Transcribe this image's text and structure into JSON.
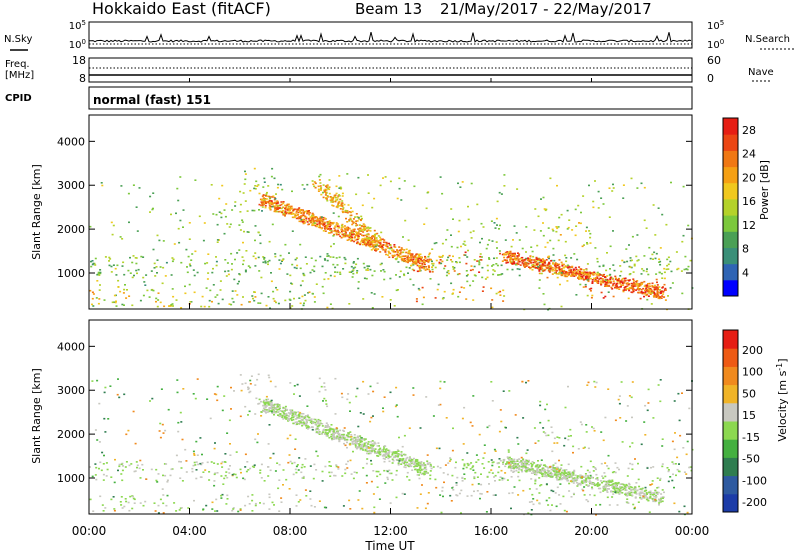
{
  "header": {
    "station": "Hokkaido East (fitACF)",
    "beam": "Beam 13",
    "date_range": "21/May/2017 - 22/May/2017"
  },
  "noise_panel": {
    "left_label": "N.Sky",
    "right_label": "N.Search",
    "left_ticks": [
      "10^5",
      "10^0"
    ],
    "right_ticks": [
      "10^5",
      "10^0"
    ]
  },
  "freq_panel": {
    "label_line1": "Freq.",
    "label_line2": "[MHz]",
    "left_ticks": [
      "18",
      "8"
    ],
    "right_label": "Nave",
    "right_ticks": [
      "60",
      "0"
    ]
  },
  "cpid_panel": {
    "label": "CPID",
    "mode": "normal (fast) 151"
  },
  "x_axis": {
    "label": "Time UT",
    "ticks": [
      "00:00",
      "04:00",
      "08:00",
      "12:00",
      "16:00",
      "20:00",
      "00:00"
    ]
  },
  "colors": {
    "power": [
      "#0000ff",
      "#2f64b4",
      "#3a8f78",
      "#4aa055",
      "#7cc83c",
      "#b4d22a",
      "#f0c81e",
      "#f5a014",
      "#f07814",
      "#eb4614",
      "#e61e14"
    ],
    "velocity": [
      "#1c3ca8",
      "#2e5aa0",
      "#2f7d50",
      "#44b040",
      "#8cd850",
      "#c8c8c0",
      "#f0b428",
      "#f08a1e",
      "#ee5a14",
      "#e61e14"
    ]
  },
  "chart_data": [
    {
      "type": "heatmap",
      "title": "Power",
      "xlabel": "Time UT",
      "ylabel": "Slant Range [km]",
      "xlim": [
        0,
        24
      ],
      "ylim": [
        180,
        4600
      ],
      "y_ticks": [
        1000,
        2000,
        3000,
        4000
      ],
      "colorbar": {
        "label": "Power [dB]",
        "range": [
          0,
          30
        ],
        "ticks": [
          4,
          8,
          12,
          16,
          20,
          24,
          28
        ]
      },
      "scatter_bands": [
        {
          "t0": 0.0,
          "t1": 24.0,
          "r0": 950,
          "r1": 1400,
          "v0": 8,
          "v1": 16,
          "density": 0.8
        },
        {
          "t0": 0.0,
          "t1": 9.0,
          "r0": 250,
          "r1": 650,
          "v0": 8,
          "v1": 22,
          "density": 0.65
        },
        {
          "t0": 2.5,
          "t1": 4.0,
          "r0": 600,
          "r1": 800,
          "v0": 8,
          "v1": 16,
          "density": 0.5
        },
        {
          "t0": 5.0,
          "t1": 7.0,
          "r0": 1700,
          "r1": 2600,
          "v0": 8,
          "v1": 16,
          "density": 0.35
        },
        {
          "t0": 5.8,
          "t1": 7.5,
          "r0": 2800,
          "r1": 3400,
          "v0": 10,
          "v1": 18,
          "density": 0.55
        },
        {
          "t0": 9.0,
          "t1": 10.5,
          "r0": 2700,
          "r1": 3300,
          "v0": 12,
          "v1": 18,
          "density": 0.4
        },
        {
          "t0": 12.8,
          "t1": 15.6,
          "r0": 1000,
          "r1": 1500,
          "v0": 16,
          "v1": 30,
          "density": 0.8
        },
        {
          "t0": 13.0,
          "t1": 16.5,
          "r0": 350,
          "r1": 700,
          "v0": 16,
          "v1": 28,
          "density": 0.5
        },
        {
          "t0": 14.8,
          "t1": 16.0,
          "r0": 1300,
          "r1": 1800,
          "v0": 10,
          "v1": 16,
          "density": 0.5
        },
        {
          "t0": 18.0,
          "t1": 20.0,
          "r0": 1600,
          "r1": 2300,
          "v0": 12,
          "v1": 20,
          "density": 0.45
        },
        {
          "t0": 19.5,
          "t1": 23.0,
          "r0": 400,
          "r1": 900,
          "v0": 18,
          "v1": 30,
          "density": 0.75
        },
        {
          "t0": 17.5,
          "t1": 19.0,
          "r0": 900,
          "r1": 1400,
          "v0": 16,
          "v1": 24,
          "density": 0.6
        }
      ],
      "scatter_paths": [
        {
          "t0": 6.8,
          "r0": 2700,
          "t1": 13.5,
          "r1": 1200,
          "width": 280,
          "v0": 16,
          "v1": 28,
          "density": 0.85
        },
        {
          "t0": 9.0,
          "r0": 3100,
          "t1": 11.5,
          "r1": 1700,
          "width": 230,
          "v0": 14,
          "v1": 24,
          "density": 0.55
        },
        {
          "t0": 16.5,
          "r0": 1400,
          "t1": 22.8,
          "r1": 550,
          "width": 260,
          "v0": 18,
          "v1": 30,
          "density": 0.8
        }
      ]
    },
    {
      "type": "heatmap",
      "title": "Velocity",
      "xlabel": "Time UT",
      "ylabel": "Slant Range [km]",
      "xlim": [
        0,
        24
      ],
      "ylim": [
        180,
        4600
      ],
      "y_ticks": [
        1000,
        2000,
        3000,
        4000
      ],
      "colorbar": {
        "label": "Velocity [m s^-1]",
        "ticks": [
          "200",
          "100",
          "50",
          "15",
          "-15",
          "-50",
          "-100",
          "-200"
        ]
      },
      "scatter_bands": [
        {
          "t0": 0.0,
          "t1": 24.0,
          "r0": 950,
          "r1": 1400,
          "v0": -15,
          "v1": 15,
          "density": 0.75
        },
        {
          "t0": 0.0,
          "t1": 9.0,
          "r0": 250,
          "r1": 650,
          "v0": -15,
          "v1": 15,
          "density": 0.5
        },
        {
          "t0": 5.8,
          "t1": 7.5,
          "r0": 2800,
          "r1": 3400,
          "v0": -60,
          "v1": -15,
          "density": 0.45
        },
        {
          "t0": 9.0,
          "t1": 10.5,
          "r0": 2700,
          "r1": 3300,
          "v0": -15,
          "v1": 15,
          "density": 0.4
        },
        {
          "t0": 14.8,
          "t1": 16.5,
          "r0": 1000,
          "r1": 1500,
          "v0": 20,
          "v1": 60,
          "density": 0.85
        },
        {
          "t0": 16.0,
          "t1": 17.2,
          "r0": 1100,
          "r1": 1400,
          "v0": -80,
          "v1": -30,
          "density": 0.6
        },
        {
          "t0": 13.5,
          "t1": 17.0,
          "r0": 500,
          "r1": 900,
          "v0": -60,
          "v1": -20,
          "density": 0.35
        },
        {
          "t0": 18.0,
          "t1": 20.0,
          "r0": 1600,
          "r1": 2300,
          "v0": -15,
          "v1": 15,
          "density": 0.35
        },
        {
          "t0": 17.5,
          "t1": 23.0,
          "r0": 400,
          "r1": 900,
          "v0": -15,
          "v1": 15,
          "density": 0.7
        }
      ],
      "scatter_paths": [
        {
          "t0": 6.8,
          "r0": 2700,
          "t1": 13.5,
          "r1": 1200,
          "width": 280,
          "v0": -15,
          "v1": 15,
          "density": 0.8
        },
        {
          "t0": 16.5,
          "r0": 1400,
          "t1": 22.8,
          "r1": 550,
          "width": 260,
          "v0": -15,
          "v1": 15,
          "density": 0.7
        }
      ]
    }
  ]
}
